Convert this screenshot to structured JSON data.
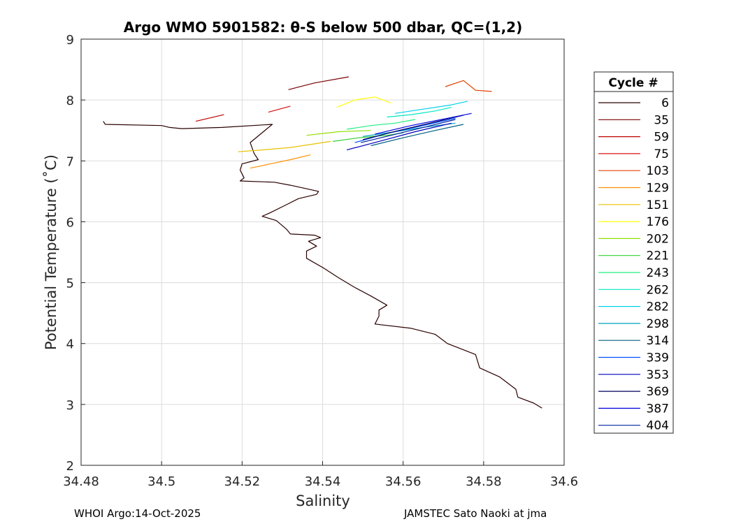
{
  "chart_data": {
    "type": "line",
    "title": "Argo WMO 5901582: θ-S below 500 dbar,  QC=(1,2)",
    "xlabel": "Salinity",
    "ylabel": "Potential Temperature (˚C)",
    "xlim": [
      34.48,
      34.6
    ],
    "ylim": [
      2,
      9
    ],
    "xticks": [
      "34.48",
      "34.5",
      "34.52",
      "34.54",
      "34.56",
      "34.58",
      "34.6"
    ],
    "yticks": [
      "2",
      "3",
      "4",
      "5",
      "6",
      "7",
      "8",
      "9"
    ],
    "grid": true,
    "legend_title": "Cycle #",
    "legend_position": "outside-right",
    "series": [
      {
        "name": "6",
        "color": "#2a0000",
        "points": [
          [
            34.4855,
            7.65
          ],
          [
            34.486,
            7.6
          ],
          [
            34.5,
            7.58
          ],
          [
            34.502,
            7.55
          ],
          [
            34.505,
            7.53
          ],
          [
            34.515,
            7.55
          ],
          [
            34.5275,
            7.6
          ],
          [
            34.522,
            7.3
          ],
          [
            34.523,
            7.12
          ],
          [
            34.524,
            7.02
          ],
          [
            34.52,
            6.95
          ],
          [
            34.5195,
            6.85
          ],
          [
            34.5205,
            6.72
          ],
          [
            34.5195,
            6.67
          ],
          [
            34.528,
            6.65
          ],
          [
            34.532,
            6.6
          ],
          [
            34.539,
            6.5
          ],
          [
            34.5385,
            6.45
          ],
          [
            34.534,
            6.38
          ],
          [
            34.531,
            6.28
          ],
          [
            34.527,
            6.15
          ],
          [
            34.525,
            6.09
          ],
          [
            34.5285,
            6.02
          ],
          [
            34.531,
            5.88
          ],
          [
            34.532,
            5.8
          ],
          [
            34.538,
            5.78
          ],
          [
            34.5395,
            5.74
          ],
          [
            34.5365,
            5.68
          ],
          [
            34.5385,
            5.6
          ],
          [
            34.536,
            5.52
          ],
          [
            34.536,
            5.4
          ],
          [
            34.54,
            5.25
          ],
          [
            34.544,
            5.08
          ],
          [
            34.548,
            4.92
          ],
          [
            34.552,
            4.78
          ],
          [
            34.556,
            4.63
          ],
          [
            34.554,
            4.55
          ],
          [
            34.554,
            4.45
          ],
          [
            34.553,
            4.32
          ],
          [
            34.562,
            4.25
          ],
          [
            34.568,
            4.15
          ],
          [
            34.571,
            4.0
          ],
          [
            34.578,
            3.82
          ],
          [
            34.579,
            3.6
          ],
          [
            34.584,
            3.45
          ],
          [
            34.588,
            3.25
          ],
          [
            34.5885,
            3.12
          ],
          [
            34.5925,
            3.02
          ],
          [
            34.5945,
            2.94
          ]
        ]
      },
      {
        "name": "35",
        "color": "#7a0000",
        "points": [
          [
            34.5315,
            8.17
          ],
          [
            34.538,
            8.28
          ],
          [
            34.5465,
            8.38
          ]
        ]
      },
      {
        "name": "59",
        "color": "#c00000",
        "points": [
          [
            34.5085,
            7.65
          ],
          [
            34.5155,
            7.76
          ]
        ]
      },
      {
        "name": "75",
        "color": "#d81010",
        "points": [
          [
            34.5265,
            7.8
          ],
          [
            34.532,
            7.9
          ]
        ]
      },
      {
        "name": "103",
        "color": "#e04000",
        "points": [
          [
            34.5705,
            8.22
          ],
          [
            34.575,
            8.32
          ],
          [
            34.578,
            8.16
          ],
          [
            34.582,
            8.14
          ]
        ]
      },
      {
        "name": "129",
        "color": "#ff9000",
        "points": [
          [
            34.522,
            6.88
          ],
          [
            34.527,
            6.95
          ],
          [
            34.532,
            7.02
          ],
          [
            34.537,
            7.1
          ]
        ]
      },
      {
        "name": "151",
        "color": "#e8c000",
        "points": [
          [
            34.519,
            7.15
          ],
          [
            34.525,
            7.18
          ],
          [
            34.532,
            7.22
          ],
          [
            34.538,
            7.28
          ],
          [
            34.542,
            7.32
          ]
        ]
      },
      {
        "name": "176",
        "color": "#ffff00",
        "points": [
          [
            34.5435,
            7.88
          ],
          [
            34.548,
            8.0
          ],
          [
            34.553,
            8.05
          ],
          [
            34.557,
            7.95
          ]
        ]
      },
      {
        "name": "202",
        "color": "#90e000",
        "points": [
          [
            34.536,
            7.42
          ],
          [
            34.544,
            7.48
          ],
          [
            34.552,
            7.5
          ]
        ]
      },
      {
        "name": "221",
        "color": "#30d030",
        "points": [
          [
            34.5425,
            7.32
          ],
          [
            34.549,
            7.38
          ],
          [
            34.556,
            7.42
          ],
          [
            34.56,
            7.46
          ]
        ]
      },
      {
        "name": "243",
        "color": "#20f080",
        "points": [
          [
            34.546,
            7.52
          ],
          [
            34.552,
            7.58
          ],
          [
            34.558,
            7.62
          ],
          [
            34.563,
            7.68
          ]
        ]
      },
      {
        "name": "262",
        "color": "#00e8c0",
        "points": [
          [
            34.556,
            7.72
          ],
          [
            34.562,
            7.76
          ],
          [
            34.568,
            7.82
          ],
          [
            34.572,
            7.88
          ]
        ]
      },
      {
        "name": "282",
        "color": "#00d0f0",
        "points": [
          [
            34.558,
            7.78
          ],
          [
            34.565,
            7.85
          ],
          [
            34.572,
            7.92
          ],
          [
            34.576,
            7.98
          ]
        ]
      },
      {
        "name": "298",
        "color": "#00a0c0",
        "points": [
          [
            34.55,
            7.4
          ],
          [
            34.558,
            7.48
          ],
          [
            34.566,
            7.56
          ],
          [
            34.573,
            7.62
          ]
        ]
      },
      {
        "name": "314",
        "color": "#005f80",
        "points": [
          [
            34.552,
            7.25
          ],
          [
            34.56,
            7.38
          ],
          [
            34.568,
            7.5
          ],
          [
            34.575,
            7.6
          ]
        ]
      },
      {
        "name": "339",
        "color": "#0050ff",
        "points": [
          [
            34.548,
            7.3
          ],
          [
            34.556,
            7.45
          ],
          [
            34.565,
            7.58
          ],
          [
            34.573,
            7.7
          ]
        ]
      },
      {
        "name": "353",
        "color": "#0000c0",
        "points": [
          [
            34.546,
            7.18
          ],
          [
            34.554,
            7.32
          ],
          [
            34.563,
            7.48
          ],
          [
            34.572,
            7.62
          ]
        ]
      },
      {
        "name": "369",
        "color": "#000060",
        "points": [
          [
            34.55,
            7.35
          ],
          [
            34.559,
            7.5
          ],
          [
            34.568,
            7.64
          ],
          [
            34.575,
            7.75
          ]
        ]
      },
      {
        "name": "387",
        "color": "#0000e0",
        "points": [
          [
            34.553,
            7.44
          ],
          [
            34.562,
            7.58
          ],
          [
            34.571,
            7.7
          ],
          [
            34.577,
            7.78
          ]
        ]
      },
      {
        "name": "404",
        "color": "#0020a0",
        "points": [
          [
            34.5495,
            7.3
          ],
          [
            34.557,
            7.42
          ],
          [
            34.565,
            7.55
          ],
          [
            34.573,
            7.68
          ]
        ]
      }
    ]
  },
  "footer": {
    "left": "WHOI Argo:14-Oct-2025",
    "right": "JAMSTEC Sato Naoki at jma"
  }
}
